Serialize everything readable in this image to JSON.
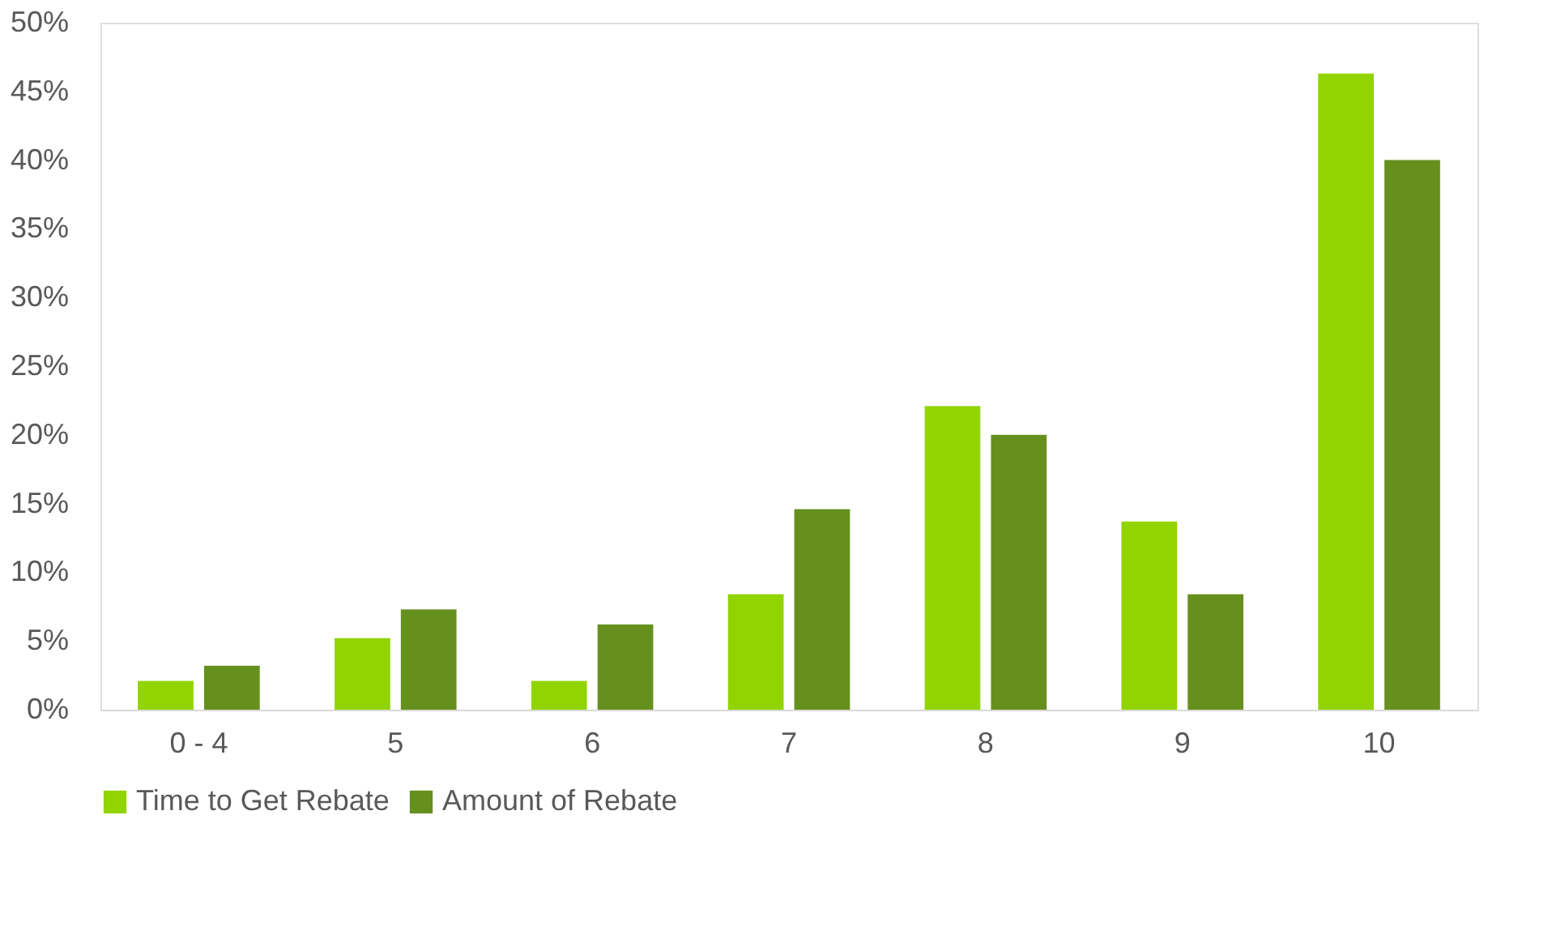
{
  "chart_data": {
    "type": "bar",
    "categories": [
      "0 - 4",
      "5",
      "6",
      "7",
      "8",
      "9",
      "10"
    ],
    "series": [
      {
        "name": "Time to Get Rebate",
        "color": "#92d400",
        "values": [
          2.1,
          5.2,
          2.1,
          8.4,
          22.1,
          13.7,
          46.3
        ]
      },
      {
        "name": "Amount of Rebate",
        "color": "#66901e",
        "values": [
          3.2,
          7.3,
          6.2,
          14.6,
          20.0,
          8.4,
          40.0
        ]
      }
    ],
    "ylim": [
      0,
      50
    ],
    "yticks": [
      {
        "value": 0,
        "label": "0%"
      },
      {
        "value": 5,
        "label": "5%"
      },
      {
        "value": 10,
        "label": "10%"
      },
      {
        "value": 15,
        "label": "15%"
      },
      {
        "value": 20,
        "label": "20%"
      },
      {
        "value": 25,
        "label": "25%"
      },
      {
        "value": 30,
        "label": "30%"
      },
      {
        "value": 35,
        "label": "35%"
      },
      {
        "value": 40,
        "label": "40%"
      },
      {
        "value": 45,
        "label": "45%"
      },
      {
        "value": 50,
        "label": "50%"
      }
    ],
    "grid": false,
    "legend": "bottom"
  }
}
